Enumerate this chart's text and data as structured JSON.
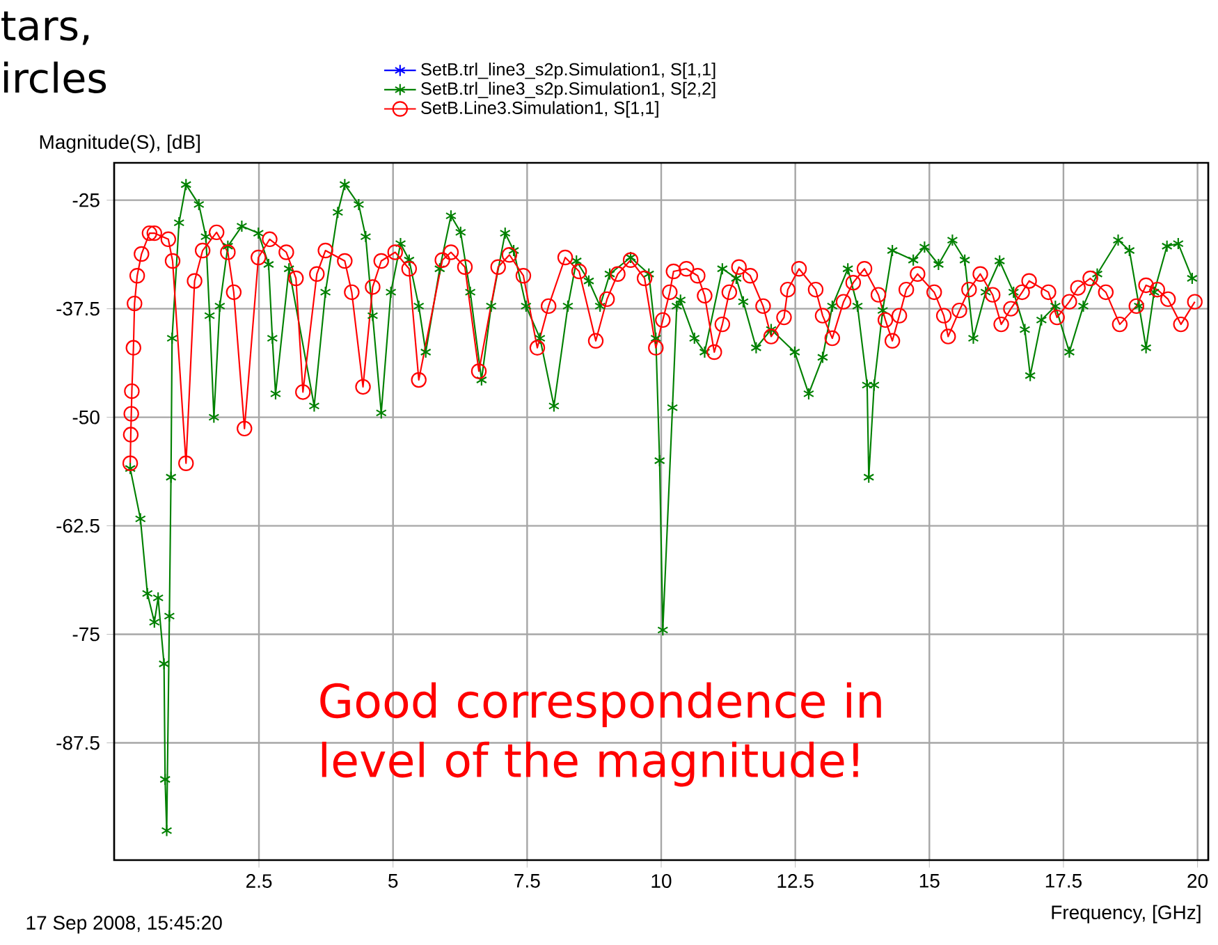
{
  "chart_data": {
    "type": "line",
    "ylabel": "Magnitude(S), [dB]",
    "xlabel": "Frequency, [GHz]",
    "annotations": [
      "tars,",
      "ircles",
      "17 Sep 2008, 15:45:20",
      "Good correspondence in level of the magnitude!"
    ],
    "xlim": [
      -0.2,
      20.2
    ],
    "ylim": [
      -101,
      -20.7
    ],
    "xticks": [
      2.5,
      5,
      7.5,
      10,
      12.5,
      15,
      17.5,
      20
    ],
    "yticks": [
      -87.5,
      -75,
      -62.5,
      -50,
      -37.5,
      -25
    ],
    "grid": true,
    "legend": "top",
    "line_style": "solid",
    "series": [
      {
        "name": "SetB.trl_line3_s2p.Simulation1, S[1,1]",
        "color": "#0000ff",
        "marker": "cross"
      },
      {
        "name": "SetB.trl_line3_s2p.Simulation1, S[2,2]",
        "color": "#008000",
        "marker": "cross",
        "x": [
          0.1,
          0.29,
          0.42,
          0.55,
          0.62,
          0.73,
          0.75,
          0.78,
          0.83,
          0.86,
          0.88,
          1.01,
          1.14,
          1.38,
          1.51,
          1.58,
          1.66,
          1.77,
          1.92,
          2.18,
          2.49,
          2.68,
          2.75,
          2.81,
          3.06,
          3.53,
          3.74,
          3.97,
          4.1,
          4.36,
          4.49,
          4.62,
          4.78,
          4.96,
          5.14,
          5.3,
          5.48,
          5.61,
          5.87,
          6.08,
          6.26,
          6.44,
          6.65,
          6.83,
          7.09,
          7.25,
          7.48,
          7.74,
          8.0,
          8.26,
          8.42,
          8.65,
          8.86,
          9.04,
          9.43,
          9.77,
          9.9,
          9.97,
          10.03,
          10.21,
          10.29,
          10.36,
          10.62,
          10.81,
          11.14,
          11.4,
          11.53,
          11.77,
          12.05,
          12.49,
          12.75,
          13.01,
          13.19,
          13.48,
          13.66,
          13.84,
          13.87,
          13.97,
          14.13,
          14.31,
          14.7,
          14.91,
          15.17,
          15.43,
          15.66,
          15.82,
          16.05,
          16.31,
          16.57,
          16.78,
          16.88,
          17.09,
          17.35,
          17.61,
          17.87,
          18.13,
          18.52,
          18.73,
          18.91,
          19.04,
          19.19,
          19.43,
          19.64,
          19.9
        ],
        "values": [
          -55.9,
          -61.7,
          -70.3,
          -73.6,
          -70.8,
          -78.4,
          -91.7,
          -97.6,
          -72.9,
          -56.9,
          -40.9,
          -27.6,
          -23.2,
          -25.5,
          -29.2,
          -38.3,
          -50,
          -37.2,
          -30.3,
          -28,
          -28.8,
          -32.4,
          -40.9,
          -47.3,
          -32.9,
          -48.7,
          -35.6,
          -26.4,
          -23.2,
          -25.5,
          -29.2,
          -38.3,
          -49.5,
          -35.6,
          -30,
          -31.9,
          -37.2,
          -42.5,
          -32.9,
          -26.8,
          -28.7,
          -35.6,
          -45.7,
          -37.2,
          -28.8,
          -30.8,
          -37.2,
          -40.9,
          -48.7,
          -37.2,
          -32,
          -34.3,
          -37.2,
          -33.5,
          -31.6,
          -33.5,
          -40.9,
          -55,
          -74.5,
          -48.9,
          -37.2,
          -36.5,
          -40.9,
          -42.5,
          -32.9,
          -34,
          -36.7,
          -42,
          -39.9,
          -42.5,
          -47.3,
          -43.1,
          -37.2,
          -32.9,
          -37.2,
          -46.3,
          -56.9,
          -46.3,
          -37.7,
          -30.8,
          -31.9,
          -30.4,
          -32.4,
          -29.6,
          -31.9,
          -40.9,
          -35.6,
          -32,
          -35.6,
          -39.9,
          -45.2,
          -38.8,
          -37.2,
          -42.5,
          -37.2,
          -33.5,
          -29.6,
          -30.8,
          -37.2,
          -42,
          -35.6,
          -30.3,
          -30,
          -34
        ]
      },
      {
        "name": "SetB.Line3.Simulation1, S[1,1]",
        "color": "#ff0000",
        "marker": "circle",
        "x": [
          0.1,
          0.11,
          0.12,
          0.13,
          0.16,
          0.18,
          0.23,
          0.31,
          0.46,
          0.55,
          0.81,
          0.89,
          1.14,
          1.3,
          1.45,
          1.71,
          1.92,
          2.03,
          2.23,
          2.49,
          2.7,
          3.01,
          3.19,
          3.32,
          3.58,
          3.74,
          4.1,
          4.23,
          4.44,
          4.62,
          4.78,
          5.04,
          5.3,
          5.48,
          5.92,
          6.08,
          6.34,
          6.6,
          6.96,
          7.17,
          7.43,
          7.69,
          7.9,
          8.21,
          8.47,
          8.78,
          8.99,
          9.19,
          9.43,
          9.69,
          9.9,
          10.03,
          10.16,
          10.23,
          10.47,
          10.68,
          10.81,
          10.99,
          11.14,
          11.27,
          11.45,
          11.66,
          11.9,
          12.05,
          12.29,
          12.36,
          12.57,
          12.88,
          13.01,
          13.19,
          13.4,
          13.58,
          13.79,
          14.05,
          14.18,
          14.31,
          14.44,
          14.57,
          14.78,
          15.09,
          15.27,
          15.35,
          15.56,
          15.74,
          15.95,
          16.18,
          16.34,
          16.52,
          16.73,
          16.86,
          17.22,
          17.38,
          17.61,
          17.77,
          18.0,
          18.29,
          18.55,
          18.86,
          19.04,
          19.25,
          19.45,
          19.69,
          19.95
        ],
        "values": [
          -55.3,
          -52,
          -49.6,
          -47,
          -42,
          -36.9,
          -33.7,
          -31.2,
          -28.8,
          -28.8,
          -29.5,
          -32,
          -55.3,
          -34.3,
          -30.8,
          -28.7,
          -31,
          -35.6,
          -51.3,
          -31.6,
          -29.5,
          -31,
          -34,
          -47.1,
          -33.5,
          -30.8,
          -32,
          -35.6,
          -46.5,
          -35,
          -32,
          -31,
          -32.9,
          -45.7,
          -31.9,
          -31,
          -32.7,
          -44.7,
          -32.7,
          -31.3,
          -33.7,
          -42,
          -37.2,
          -31.6,
          -33.2,
          -41.2,
          -36.4,
          -33.5,
          -31.9,
          -34,
          -42,
          -38.8,
          -35.6,
          -33.2,
          -32.9,
          -33.7,
          -36,
          -42.5,
          -39.3,
          -35.6,
          -32.7,
          -33.7,
          -37.2,
          -40.7,
          -38.5,
          -35.3,
          -32.9,
          -35.3,
          -38.3,
          -40.9,
          -36.7,
          -34.5,
          -32.9,
          -35.9,
          -38.8,
          -41.2,
          -38.3,
          -35.3,
          -33.5,
          -35.6,
          -38.3,
          -40.7,
          -37.7,
          -35.3,
          -33.5,
          -35.9,
          -39.3,
          -37.5,
          -35.6,
          -34.3,
          -35.6,
          -38.5,
          -36.7,
          -35.1,
          -34,
          -35.6,
          -39.3,
          -37.2,
          -34.8,
          -35.3,
          -36.4,
          -39.3,
          -36.7
        ]
      }
    ]
  }
}
